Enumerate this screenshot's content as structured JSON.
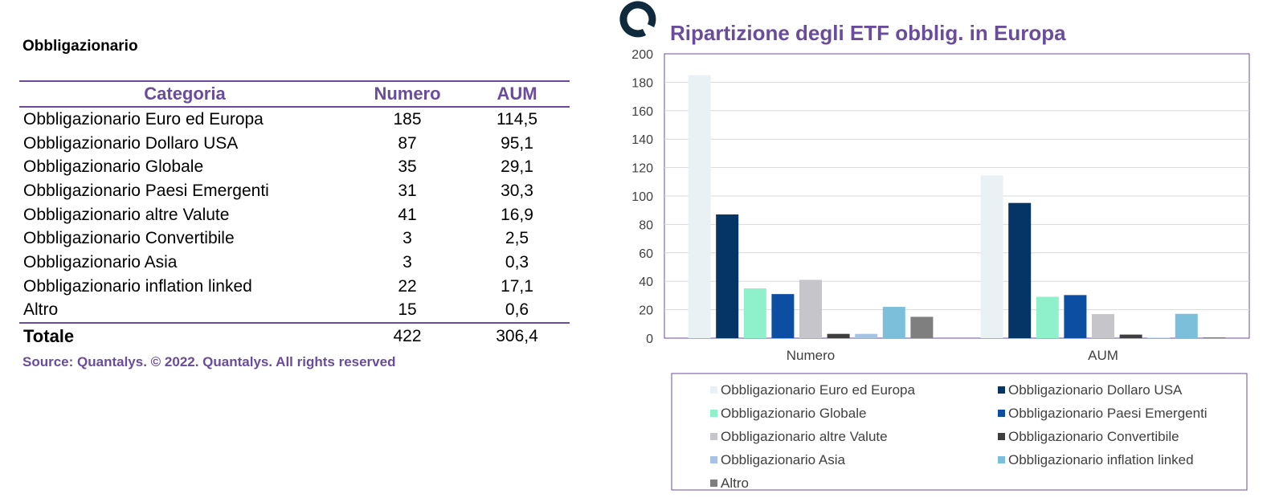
{
  "left_panel": {
    "section_title": "Obbligazionario",
    "table": {
      "headers": [
        "Categoria",
        "Numero",
        "AUM"
      ],
      "rows": [
        [
          "Obbligazionario Euro ed Europa",
          "185",
          "114,5"
        ],
        [
          "Obbligazionario Dollaro USA",
          "87",
          "95,1"
        ],
        [
          "Obbligazionario Globale",
          "35",
          "29,1"
        ],
        [
          "Obbligazionario Paesi Emergenti",
          "31",
          "30,3"
        ],
        [
          "Obbligazionario altre Valute",
          "41",
          "16,9"
        ],
        [
          "Obbligazionario Convertibile",
          "3",
          "2,5"
        ],
        [
          "Obbligazionario Asia",
          "3",
          "0,3"
        ],
        [
          "Obbligazionario inflation linked",
          "22",
          "17,1"
        ],
        [
          "Altro",
          "15",
          "0,6"
        ]
      ],
      "total": [
        "Totale",
        "422",
        "306,4"
      ]
    },
    "source": "Source: Quantalys. © 2022. Quantalys. All rights reserved"
  },
  "colors": {
    "accent": "#6a4c9c",
    "logo": "#0f2a3d"
  },
  "logo_icon": "ring-logo-icon",
  "chart_data": {
    "type": "bar",
    "title": "Ripartizione degli ETF obblig. in Europa",
    "categories": [
      "Numero",
      "AUM"
    ],
    "ylim": [
      0,
      200
    ],
    "yticks": [
      0,
      20,
      40,
      60,
      80,
      100,
      120,
      140,
      160,
      180,
      200
    ],
    "grid": true,
    "legend_position": "bottom",
    "series": [
      {
        "name": "Obbligazionario Euro ed Europa",
        "values": [
          185,
          114.5
        ],
        "color": "#eaf1f5"
      },
      {
        "name": "Obbligazionario Dollaro USA",
        "values": [
          87,
          95.1
        ],
        "color": "#053567"
      },
      {
        "name": "Obbligazionario Globale",
        "values": [
          35,
          29.1
        ],
        "color": "#8ff0cc"
      },
      {
        "name": "Obbligazionario Paesi Emergenti",
        "values": [
          31,
          30.3
        ],
        "color": "#0b4ea2"
      },
      {
        "name": "Obbligazionario altre Valute",
        "values": [
          41,
          16.9
        ],
        "color": "#c5c5ca"
      },
      {
        "name": "Obbligazionario Convertibile",
        "values": [
          3,
          2.5
        ],
        "color": "#3e3e3e"
      },
      {
        "name": "Obbligazionario Asia",
        "values": [
          3,
          0.3
        ],
        "color": "#a6c3e6"
      },
      {
        "name": "Obbligazionario inflation linked",
        "values": [
          22,
          17.1
        ],
        "color": "#7bbfdb"
      },
      {
        "name": "Altro",
        "values": [
          15,
          0.6
        ],
        "color": "#7f7f7f"
      }
    ]
  }
}
